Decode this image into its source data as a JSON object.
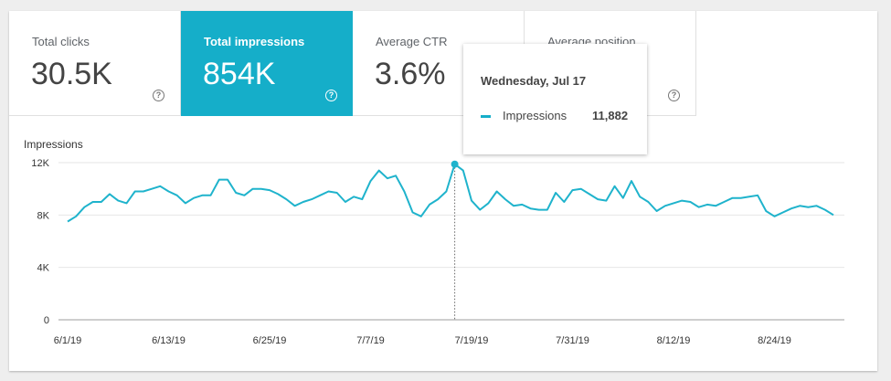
{
  "tiles": [
    {
      "label": "Total clicks",
      "value": "30.5K"
    },
    {
      "label": "Total impressions",
      "value": "854K"
    },
    {
      "label": "Average CTR",
      "value": "3.6%"
    },
    {
      "label": "Average position",
      "value": ""
    }
  ],
  "help_glyph": "?",
  "tooltip": {
    "date": "Wednesday, Jul 17",
    "series": "Impressions",
    "value": "11,882"
  },
  "colors": {
    "accent": "#15aec9",
    "line": "#1fb3cc"
  },
  "chart_data": {
    "type": "line",
    "ylabel": "Impressions",
    "ylim": [
      0,
      12000
    ],
    "y_ticks": [
      {
        "v": 0,
        "label": "0"
      },
      {
        "v": 4000,
        "label": "4K"
      },
      {
        "v": 8000,
        "label": "8K"
      },
      {
        "v": 12000,
        "label": "12K"
      }
    ],
    "x_start": "2019-06-01",
    "x_tick_labels": [
      "6/1/19",
      "6/13/19",
      "6/25/19",
      "7/7/19",
      "7/19/19",
      "7/31/19",
      "8/12/19",
      "8/24/19"
    ],
    "highlight_index": 46,
    "grid": true,
    "series": [
      {
        "name": "Impressions",
        "values": [
          7500,
          7900,
          8600,
          9000,
          9000,
          9600,
          9100,
          8900,
          9800,
          9800,
          10000,
          10200,
          9800,
          9500,
          8900,
          9300,
          9500,
          9500,
          10700,
          10700,
          9700,
          9500,
          10000,
          10000,
          9900,
          9600,
          9200,
          8700,
          9000,
          9200,
          9500,
          9800,
          9700,
          9000,
          9400,
          9200,
          10600,
          11400,
          10800,
          11000,
          9800,
          8200,
          7900,
          8800,
          9200,
          9800,
          11882,
          11400,
          9100,
          8400,
          8900,
          9800,
          9200,
          8700,
          8800,
          8500,
          8400,
          8400,
          9700,
          9000,
          9900,
          10000,
          9600,
          9200,
          9100,
          10200,
          9300,
          10600,
          9400,
          9000,
          8300,
          8700,
          8900,
          9100,
          9000,
          8600,
          8800,
          8700,
          9000,
          9300,
          9300,
          9400,
          9500,
          8300,
          7900,
          8200,
          8500,
          8700,
          8600,
          8700,
          8400,
          8000
        ]
      }
    ]
  }
}
